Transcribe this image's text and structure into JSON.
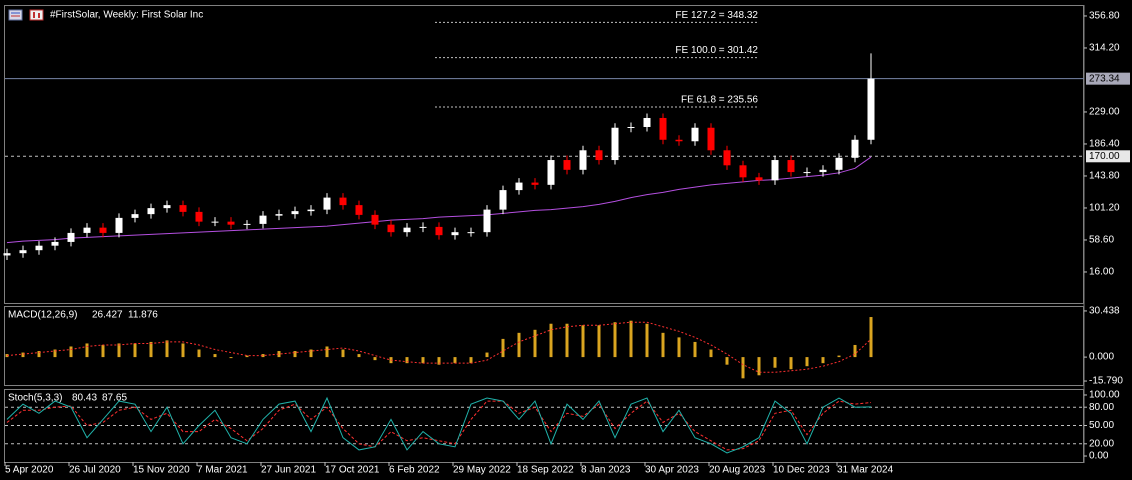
{
  "chart_data": [
    {
      "type": "candlestick",
      "title": "#FirstSolar, Weekly:  First Solar Inc",
      "categories": [
        "5 Apr 2020",
        null,
        null,
        null,
        "26 Jul 2020",
        null,
        null,
        null,
        "15 Nov 2020",
        null,
        null,
        null,
        "7 Mar 2021",
        null,
        null,
        null,
        "27 Jun 2021",
        null,
        null,
        null,
        "17 Oct 2021",
        null,
        null,
        null,
        "6 Feb 2022",
        null,
        null,
        null,
        "29 May 2022",
        null,
        null,
        null,
        "18 Sep 2022",
        null,
        null,
        null,
        "8 Jan 2023",
        null,
        null,
        null,
        "30 Apr 2023",
        null,
        null,
        null,
        "20 Aug 2023",
        null,
        null,
        null,
        "10 Dec 2023",
        null,
        null,
        null,
        "31 Mar 2024",
        null,
        null
      ],
      "open": [
        38,
        41,
        45,
        51,
        56,
        68,
        75,
        68,
        88,
        93,
        101,
        105,
        96,
        83,
        83,
        79,
        80,
        91,
        93,
        97,
        99,
        115,
        105,
        92,
        79,
        69,
        75,
        76,
        65,
        69,
        69,
        99,
        125,
        135,
        132,
        165,
        152,
        178,
        165,
        208,
        209,
        221,
        192,
        190,
        208,
        178,
        158,
        142,
        138,
        165,
        149,
        149,
        152,
        168,
        192
      ],
      "high": [
        47,
        51,
        57,
        62,
        74,
        81,
        81,
        94,
        99,
        107,
        111,
        111,
        102,
        89,
        89,
        85,
        97,
        99,
        103,
        105,
        121,
        121,
        111,
        98,
        85,
        81,
        82,
        82,
        75,
        75,
        105,
        131,
        141,
        141,
        171,
        171,
        184,
        184,
        214,
        215,
        227,
        227,
        198,
        214,
        214,
        184,
        164,
        148,
        171,
        171,
        155,
        158,
        174,
        198,
        307
      ],
      "low": [
        32,
        35,
        39,
        45,
        50,
        62,
        62,
        62,
        82,
        87,
        95,
        90,
        77,
        77,
        73,
        73,
        74,
        85,
        87,
        91,
        93,
        99,
        86,
        73,
        63,
        63,
        69,
        59,
        59,
        63,
        63,
        93,
        119,
        126,
        126,
        146,
        146,
        159,
        159,
        202,
        203,
        186,
        184,
        184,
        172,
        152,
        136,
        132,
        132,
        143,
        143,
        143,
        146,
        162,
        186
      ],
      "close": [
        41,
        45,
        51,
        56,
        68,
        75,
        68,
        88,
        93,
        101,
        105,
        96,
        83,
        83,
        79,
        80,
        91,
        93,
        97,
        99,
        115,
        105,
        92,
        79,
        69,
        75,
        76,
        65,
        69,
        69,
        99,
        125,
        135,
        132,
        165,
        152,
        178,
        165,
        208,
        209,
        221,
        192,
        190,
        208,
        178,
        158,
        142,
        138,
        165,
        149,
        149,
        152,
        168,
        192,
        273.34
      ],
      "up_color": "#ffffff",
      "down_color": "#ff0000",
      "ma": {
        "color": "#b44fe0",
        "values": [
          55,
          57,
          58,
          59,
          61,
          62,
          63,
          64,
          65,
          66,
          67,
          68,
          69,
          70,
          71,
          72,
          73,
          74,
          75,
          76,
          77,
          79,
          81,
          83,
          85,
          86,
          87,
          89,
          90,
          91,
          92,
          94,
          96,
          98,
          99,
          101,
          103,
          106,
          110,
          115,
          119,
          122,
          126,
          129,
          132,
          134,
          136,
          138,
          139,
          141,
          143,
          145,
          148,
          154,
          169
        ]
      },
      "ylim": [
        -25.3,
        371.4
      ],
      "yticks": [
        {
          "value": 356.8,
          "label": "356.80"
        },
        {
          "value": 314.2,
          "label": "314.20"
        },
        {
          "value": 229,
          "label": "229.00"
        },
        {
          "value": 186.4,
          "label": "186.40"
        },
        {
          "value": 143.8,
          "label": "143.80"
        },
        {
          "value": 101.2,
          "label": "101.20"
        },
        {
          "value": 58.6,
          "label": "58.60"
        },
        {
          "value": 16,
          "label": "16.00"
        }
      ],
      "hlines": [
        {
          "value": 273.34,
          "label": "273.34",
          "style": "solid"
        },
        {
          "value": 170,
          "label": "170.00",
          "style": "dashed"
        }
      ],
      "levels": [
        {
          "value": 348.32,
          "label": "FE 127.2 = 348.32"
        },
        {
          "value": 301.42,
          "label": "FE 100.0 = 301.42"
        },
        {
          "value": 235.56,
          "label": "FE 61.8 = 235.56"
        }
      ]
    },
    {
      "type": "macd",
      "title": "MACD(12,26,9)",
      "series": [
        {
          "type": "bar",
          "color": "#daa520",
          "values": [
            2,
            3,
            4,
            5,
            7,
            9,
            8,
            9,
            9,
            10,
            11,
            9,
            5,
            2,
            0,
            1,
            2,
            4,
            4,
            5,
            7,
            5,
            2,
            -2,
            -4,
            -4,
            -4,
            -5,
            -4,
            -4,
            3,
            12,
            16,
            18,
            22,
            22,
            21,
            21,
            23,
            24,
            22,
            16,
            13,
            10,
            5,
            -5,
            -14,
            -12,
            -7,
            -8,
            -6,
            -4,
            1,
            8,
            26.427
          ]
        },
        {
          "type": "line",
          "color": "#ff3030",
          "values": [
            1,
            2,
            3,
            4,
            5,
            7,
            8,
            8,
            9,
            9,
            10,
            10,
            8,
            5,
            3,
            1,
            1,
            2,
            3,
            4,
            5,
            6,
            4,
            1,
            -2,
            -3,
            -4,
            -4,
            -4,
            -4,
            -2,
            4,
            10,
            14,
            18,
            20,
            21,
            21,
            22,
            23,
            23,
            20,
            17,
            13,
            8,
            2,
            -5,
            -10,
            -10,
            -9,
            -8,
            -6,
            -3,
            2,
            11.876
          ]
        }
      ],
      "ylim": [
        -18.4,
        33.7
      ],
      "yticks": [
        30.438,
        {
          "value": 0,
          "label": "0.000"
        },
        {
          "value": -15.79,
          "label": "-15.790"
        }
      ]
    },
    {
      "type": "stochastic",
      "title": "Stoch(5,3,3)",
      "series": [
        {
          "type": "line",
          "color": "#20b2aa",
          "values": [
            60,
            85,
            70,
            90,
            80,
            30,
            60,
            90,
            85,
            40,
            80,
            20,
            50,
            75,
            30,
            20,
            60,
            85,
            90,
            40,
            95,
            30,
            10,
            15,
            60,
            10,
            40,
            20,
            15,
            85,
            95,
            90,
            60,
            90,
            20,
            85,
            60,
            90,
            30,
            85,
            95,
            40,
            75,
            30,
            20,
            5,
            15,
            30,
            90,
            70,
            20,
            80,
            95,
            80,
            80.43
          ]
        },
        {
          "type": "line",
          "color": "#ff3030",
          "values": [
            55,
            75,
            75,
            80,
            82,
            50,
            55,
            75,
            80,
            60,
            70,
            40,
            40,
            60,
            45,
            25,
            45,
            75,
            85,
            60,
            80,
            45,
            20,
            15,
            40,
            25,
            30,
            25,
            20,
            60,
            90,
            90,
            70,
            80,
            40,
            70,
            65,
            85,
            45,
            70,
            90,
            55,
            70,
            40,
            25,
            10,
            12,
            25,
            70,
            75,
            35,
            70,
            90,
            85,
            87.65
          ]
        }
      ],
      "ylim": [
        -9.8,
        109.8
      ],
      "yticks": [
        {
          "value": 100,
          "label": "100.00"
        },
        {
          "value": 80,
          "label": "80.00"
        },
        {
          "value": 50,
          "label": "50.00"
        },
        {
          "value": 20,
          "label": "20.00"
        },
        {
          "value": 0,
          "label": "0.00"
        }
      ],
      "levels": [
        80,
        50,
        20
      ]
    }
  ]
}
